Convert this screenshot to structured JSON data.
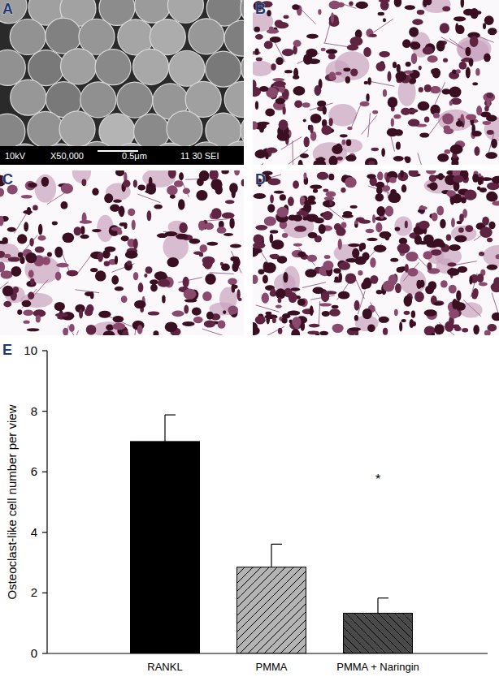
{
  "panels": {
    "labels": [
      "A",
      "B",
      "C",
      "D",
      "E"
    ],
    "sem_caption": [
      "10kV",
      "X50,000",
      "0.5μm",
      "11 30 SEI"
    ]
  },
  "chart_data": {
    "type": "bar",
    "ylabel": "Osteoclast-like cell number per view",
    "categories": [
      "RANKL",
      "PMMA",
      "PMMA + Naringin"
    ],
    "values": [
      7.0,
      2.85,
      1.33
    ],
    "errors": [
      0.88,
      0.76,
      0.5
    ],
    "colors": [
      "#000000",
      "#b4b4b4",
      "#4a4a4a"
    ],
    "ylim": [
      0,
      10
    ],
    "yticks": [
      0,
      2,
      4,
      6,
      8,
      10
    ],
    "grid": false,
    "annotations": [
      {
        "text": "*",
        "category": 2,
        "y": 5.6
      }
    ]
  }
}
